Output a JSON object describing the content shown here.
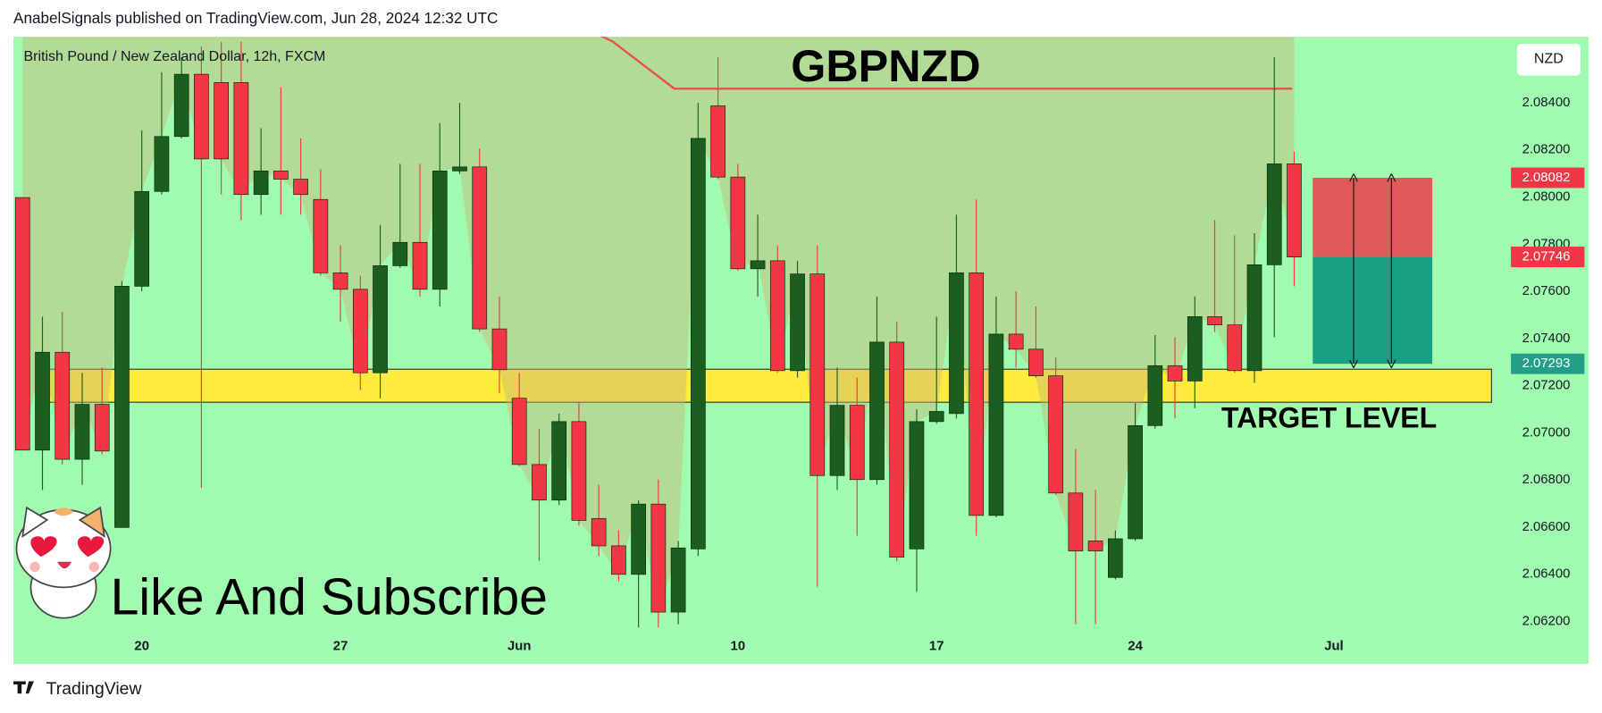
{
  "chart_data": {
    "type": "candlestick",
    "header": "AnabelSignals published on TradingView.com, Jun 28, 2024 12:32 UTC",
    "subtitle": "British Pound / New Zealand Dollar, 12h, FXCM",
    "title": "GBPNZD",
    "currency": "NZD",
    "annotation": "Like And Subscribe",
    "footer": "TradingView",
    "colors": {
      "up": "#1b5e20",
      "down": "#f23645"
    },
    "open": [
      2.07998,
      2.06927,
      2.07342,
      2.06888,
      2.07121,
      2.06599,
      2.07622,
      2.08024,
      2.08257,
      2.08521,
      2.08486,
      2.08486,
      2.08011,
      2.08111,
      2.08076,
      2.0799,
      2.07679,
      2.07609,
      2.07255,
      2.07709,
      2.07808,
      2.07609,
      2.08111,
      2.08128,
      2.07441,
      2.07147,
      2.06866,
      2.06715,
      2.07048,
      2.06637,
      2.06521,
      2.064,
      2.06698,
      2.0624,
      2.06508,
      2.08387,
      2.08085,
      2.07696,
      2.0773,
      2.07264,
      2.07674,
      2.06819,
      2.07117,
      2.06802,
      2.07385,
      2.06508,
      2.07048,
      2.07082,
      2.07679,
      2.0665,
      2.07419,
      2.07355,
      2.07242,
      2.06745,
      2.06542,
      2.06387,
      2.06551,
      2.07031,
      2.07285,
      2.0722,
      2.07493,
      2.07458,
      2.07264,
      2.07713,
      2.08141
    ],
    "high": [
      2.08,
      2.07493,
      2.07514,
      2.07255,
      2.07277,
      2.07644,
      2.08283,
      2.0853,
      2.08594,
      2.08638,
      2.08659,
      2.08659,
      2.08292,
      2.08465,
      2.08249,
      2.08119,
      2.07795,
      2.07666,
      2.07882,
      2.08141,
      2.08141,
      2.08314,
      2.084,
      2.08206,
      2.07579,
      2.07255,
      2.07018,
      2.07082,
      2.07126,
      2.0678,
      2.06586,
      2.06715,
      2.06802,
      2.06542,
      2.084,
      2.08594,
      2.08141,
      2.07925,
      2.07795,
      2.0773,
      2.07795,
      2.07277,
      2.07234,
      2.07579,
      2.07471,
      2.071,
      2.07493,
      2.07925,
      2.0799,
      2.07579,
      2.07601,
      2.07536,
      2.0732,
      2.06931,
      2.06758,
      2.06586,
      2.07126,
      2.07415,
      2.07406,
      2.07579,
      2.07903,
      2.07838,
      2.07847,
      2.08594,
      2.08193
    ],
    "low": [
      2.06927,
      2.06758,
      2.06866,
      2.0678,
      2.0691,
      2.06599,
      2.07601,
      2.08011,
      2.08249,
      2.06767,
      2.08011,
      2.07903,
      2.07925,
      2.07925,
      2.07925,
      2.07666,
      2.07471,
      2.07182,
      2.07147,
      2.077,
      2.07579,
      2.07536,
      2.08098,
      2.07428,
      2.07169,
      2.06858,
      2.06456,
      2.06694,
      2.06607,
      2.06478,
      2.0637,
      2.06175,
      2.06175,
      2.06188,
      2.06478,
      2.08076,
      2.07687,
      2.07579,
      2.07255,
      2.07234,
      2.06348,
      2.06758,
      2.06564,
      2.0678,
      2.06456,
      2.06326,
      2.07039,
      2.07061,
      2.06564,
      2.06642,
      2.07277,
      2.07234,
      2.06737,
      2.06188,
      2.06188,
      2.06378,
      2.06542,
      2.07018,
      2.07061,
      2.07104,
      2.07428,
      2.07255,
      2.07212,
      2.07406,
      2.07622
    ],
    "close": [
      2.06927,
      2.07342,
      2.06888,
      2.07121,
      2.06923,
      2.07622,
      2.08024,
      2.08257,
      2.08521,
      2.08162,
      2.08162,
      2.08011,
      2.08111,
      2.08076,
      2.08011,
      2.07679,
      2.07609,
      2.07255,
      2.07709,
      2.07808,
      2.07609,
      2.08111,
      2.08128,
      2.07441,
      2.07268,
      2.06866,
      2.06715,
      2.07048,
      2.06629,
      2.06521,
      2.064,
      2.06698,
      2.0624,
      2.06512,
      2.08249,
      2.08085,
      2.07696,
      2.0773,
      2.07264,
      2.07674,
      2.06819,
      2.07117,
      2.06802,
      2.07385,
      2.06473,
      2.07048,
      2.07091,
      2.07679,
      2.0665,
      2.07419,
      2.07355,
      2.07242,
      2.06745,
      2.06499,
      2.06499,
      2.06551,
      2.07031,
      2.07285,
      2.0722,
      2.07493,
      2.07458,
      2.07264,
      2.07713,
      2.08141,
      2.07746
    ],
    "xlim": [
      -0.46,
      74.6
    ],
    "xticks": [
      {
        "value": 6,
        "label": "20"
      },
      {
        "value": 16,
        "label": "27"
      },
      {
        "value": 25,
        "label": "Jun"
      },
      {
        "value": 36,
        "label": "10"
      },
      {
        "value": 46,
        "label": "17"
      },
      {
        "value": 56,
        "label": "24"
      },
      {
        "value": 66,
        "label": "Jul"
      }
    ],
    "ylim": [
      2.0602,
      2.0868
    ],
    "yticks": [
      {
        "value": 2.062,
        "label": "2.06200"
      },
      {
        "value": 2.064,
        "label": "2.06400"
      },
      {
        "value": 2.066,
        "label": "2.06600"
      },
      {
        "value": 2.068,
        "label": "2.06800"
      },
      {
        "value": 2.07,
        "label": "2.07000"
      },
      {
        "value": 2.072,
        "label": "2.07200"
      },
      {
        "value": 2.074,
        "label": "2.07400"
      },
      {
        "value": 2.076,
        "label": "2.07600"
      },
      {
        "value": 2.078,
        "label": "2.07800"
      },
      {
        "value": 2.08,
        "label": "2.08000"
      },
      {
        "value": 2.082,
        "label": "2.08200"
      },
      {
        "value": 2.084,
        "label": "2.08400"
      }
    ],
    "grid": false,
    "resistance": {
      "x": [
        28.7,
        29.7,
        32.8,
        63.9
      ],
      "y": [
        2.087,
        2.0866,
        2.0846,
        2.0846
      ],
      "color": "#f04a4a"
    },
    "target_zone": {
      "range": [
        2.0713,
        2.0727
      ],
      "label": "TARGET LEVEL",
      "color": "#ffeb3b"
    },
    "price_labels": [
      {
        "value": 2.08082,
        "color": "#f23645"
      },
      {
        "value": 2.07747,
        "color": "#787b86"
      },
      {
        "value": 2.07746,
        "color": "#f23645"
      },
      {
        "value": 2.07293,
        "color": "#22a085"
      }
    ]
  }
}
